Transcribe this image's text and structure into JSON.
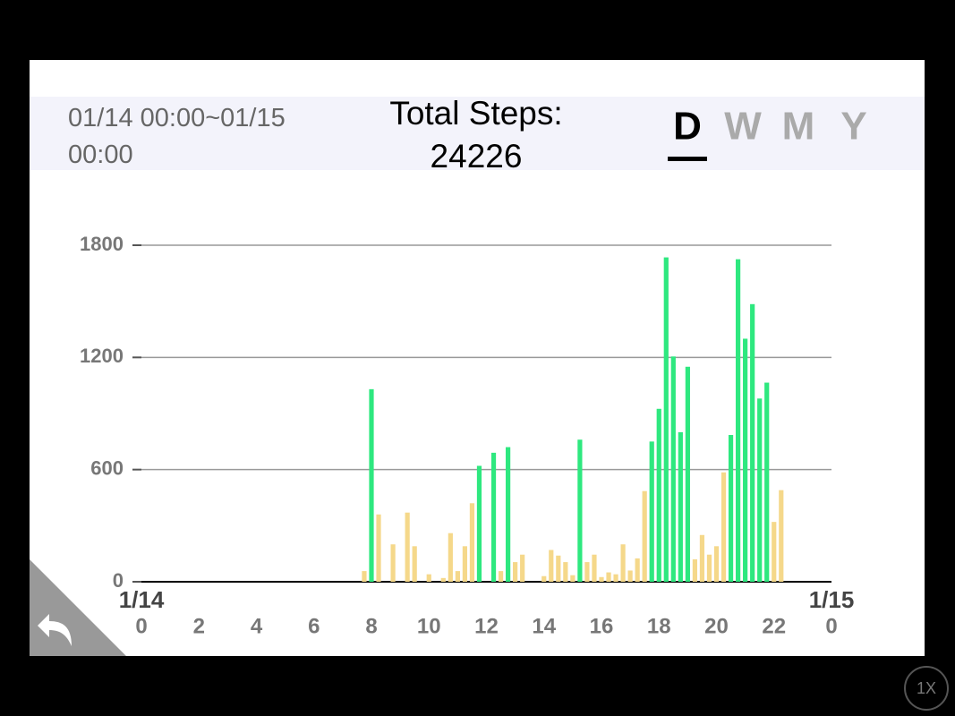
{
  "header": {
    "range": "01/14 00:00~01/15 00:00",
    "label": "Total Steps:",
    "total": 24226,
    "tabs": [
      "D",
      "W",
      "M",
      "Y"
    ],
    "selected": 0
  },
  "speed": "1X",
  "chart_data": {
    "type": "bar",
    "start_label": "1/14",
    "end_label": "1/15",
    "x": [
      7.75,
      8,
      8.25,
      8.75,
      9.25,
      9.5,
      10,
      10.5,
      10.75,
      11,
      11.25,
      11.5,
      11.75,
      12.25,
      12.5,
      12.75,
      13,
      13.25,
      14,
      14.25,
      14.5,
      14.75,
      15,
      15.25,
      15.5,
      15.75,
      16,
      16.25,
      16.5,
      16.75,
      17,
      17.25,
      17.5,
      17.75,
      18,
      18.25,
      18.5,
      18.75,
      19,
      19.25,
      19.5,
      19.75,
      20,
      20.25,
      20.5,
      20.75,
      21,
      21.25,
      21.5,
      21.75,
      22,
      22.25
    ],
    "values": [
      57,
      1030,
      360,
      200,
      370,
      190,
      40,
      20,
      260,
      57,
      190,
      420,
      620,
      690,
      57,
      720,
      105,
      145,
      30,
      170,
      140,
      105,
      35,
      760,
      105,
      145,
      25,
      50,
      40,
      200,
      60,
      125,
      485,
      750,
      925,
      1735,
      1205,
      800,
      1150,
      120,
      250,
      145,
      190,
      585,
      785,
      1725,
      1300,
      1485,
      980,
      1065,
      320,
      490
    ],
    "colors": [
      "#f5d88a",
      "#2ee87f",
      "#f5d88a",
      "#f5d88a",
      "#f5d88a",
      "#f5d88a",
      "#f5d88a",
      "#f5d88a",
      "#f5d88a",
      "#f5d88a",
      "#f5d88a",
      "#f5d88a",
      "#2ee87f",
      "#2ee87f",
      "#f5d88a",
      "#2ee87f",
      "#f5d88a",
      "#f5d88a",
      "#f5d88a",
      "#f5d88a",
      "#f5d88a",
      "#f5d88a",
      "#f5d88a",
      "#2ee87f",
      "#f5d88a",
      "#f5d88a",
      "#f5d88a",
      "#f5d88a",
      "#f5d88a",
      "#f5d88a",
      "#f5d88a",
      "#f5d88a",
      "#f5d88a",
      "#2ee87f",
      "#2ee87f",
      "#2ee87f",
      "#2ee87f",
      "#2ee87f",
      "#2ee87f",
      "#f5d88a",
      "#f5d88a",
      "#f5d88a",
      "#f5d88a",
      "#f5d88a",
      "#2ee87f",
      "#2ee87f",
      "#2ee87f",
      "#2ee87f",
      "#2ee87f",
      "#2ee87f",
      "#f5d88a",
      "#f5d88a"
    ],
    "xlim": [
      0,
      24
    ],
    "xticks": [
      0,
      2,
      4,
      6,
      8,
      10,
      12,
      14,
      16,
      18,
      20,
      22,
      {
        "value": 24,
        "label": "0"
      }
    ],
    "ylim": [
      0,
      1800
    ],
    "yticks": [
      0,
      600,
      1200,
      1800
    ],
    "grid": true
  }
}
